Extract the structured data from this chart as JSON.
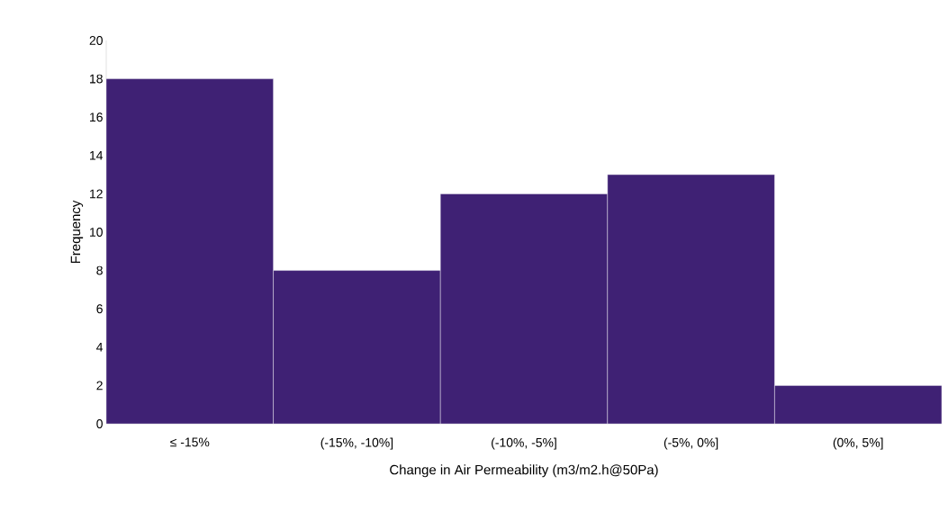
{
  "chart_data": {
    "type": "bar",
    "xlabel": "Change in Air Permeability (m3/m2.h@50Pa)",
    "ylabel": "Frequency",
    "categories": [
      "≤ -15%",
      "(-15%, -10%]",
      "(-10%, -5%]",
      "(-5%, 0%]",
      "(0%, 5%]"
    ],
    "values": [
      18,
      8,
      12,
      13,
      2
    ],
    "color": "#3f2174",
    "ylim": [
      0,
      20
    ],
    "yticks": [
      0,
      2,
      4,
      6,
      8,
      10,
      12,
      14,
      16,
      18,
      20
    ],
    "grid": false
  }
}
